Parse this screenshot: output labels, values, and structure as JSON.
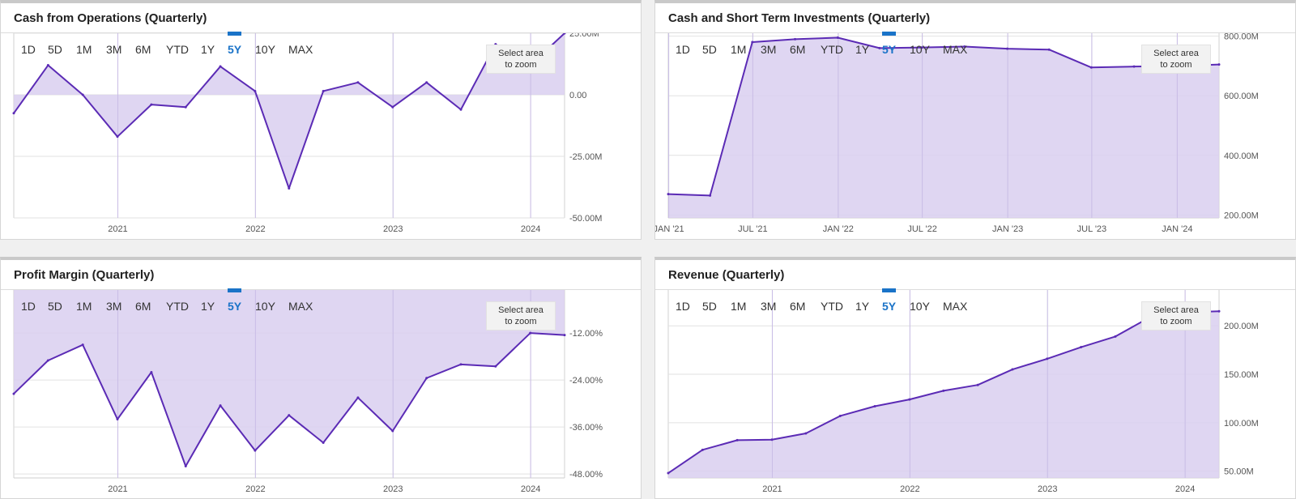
{
  "range_buttons": [
    "1D",
    "5D",
    "1M",
    "3M",
    "6M",
    "YTD",
    "1Y",
    "5Y",
    "10Y",
    "MAX"
  ],
  "active_range": "5Y",
  "zoom_button": {
    "line1": "Select area",
    "line2": "to zoom"
  },
  "colors": {
    "line": "#5b2bb5",
    "fill": "#d9cff0",
    "active": "#1a73c8"
  },
  "chart_data": [
    {
      "type": "area",
      "title": "Cash from Operations (Quarterly)",
      "x": [
        "2020-03-31",
        "2020-06-30",
        "2020-09-30",
        "2020-12-31",
        "2021-03-31",
        "2021-06-30",
        "2021-09-30",
        "2021-12-31",
        "2022-03-31",
        "2022-06-30",
        "2022-09-30",
        "2022-12-31",
        "2023-03-31",
        "2023-06-30",
        "2023-09-30",
        "2023-12-31",
        "2024-03-31"
      ],
      "values": [
        -7.5,
        12,
        0,
        -17,
        -4,
        -5,
        11.5,
        1.5,
        -38,
        1.5,
        5,
        -5,
        5,
        -6,
        20.5,
        12,
        25
      ],
      "ylim": [
        -50,
        25
      ],
      "yticks": [
        25,
        0,
        -25,
        -50
      ],
      "ytick_labels": [
        "25.00M",
        "0.00",
        "-25.00M",
        "-50.00M"
      ],
      "xtick_labels": [
        "2021",
        "2022",
        "2023",
        "2024"
      ],
      "xtick_dates": [
        "2021-01-01",
        "2022-01-01",
        "2023-01-01",
        "2024-01-01"
      ],
      "baseline": 0
    },
    {
      "type": "area",
      "title": "Cash and Short Term Investments (Quarterly)",
      "x": [
        "2020-12-31",
        "2021-03-31",
        "2021-06-30",
        "2021-09-30",
        "2021-12-31",
        "2022-03-31",
        "2022-06-30",
        "2022-09-30",
        "2022-12-31",
        "2023-03-31",
        "2023-06-30",
        "2023-09-30",
        "2023-12-31",
        "2024-03-31"
      ],
      "values": [
        270,
        265,
        780,
        790,
        795,
        760,
        762,
        765,
        758,
        755,
        695,
        698,
        700,
        705
      ],
      "ylim": [
        190,
        810
      ],
      "yticks": [
        800,
        600,
        400,
        200
      ],
      "ytick_labels": [
        "800.00M",
        "600.00M",
        "400.00M",
        "200.00M"
      ],
      "xtick_labels": [
        "JAN '21",
        "JUL '21",
        "JAN '22",
        "JUL '22",
        "JAN '23",
        "JUL '23",
        "JAN '24"
      ],
      "xtick_dates": [
        "2021-01-01",
        "2021-07-01",
        "2022-01-01",
        "2022-07-01",
        "2023-01-01",
        "2023-07-01",
        "2024-01-01"
      ],
      "baseline": "bottom"
    },
    {
      "type": "area",
      "title": "Profit Margin (Quarterly)",
      "x": [
        "2020-03-31",
        "2020-06-30",
        "2020-09-30",
        "2020-12-31",
        "2021-03-31",
        "2021-06-30",
        "2021-09-30",
        "2021-12-31",
        "2022-03-31",
        "2022-06-30",
        "2022-09-30",
        "2022-12-31",
        "2023-03-31",
        "2023-06-30",
        "2023-09-30",
        "2023-12-31",
        "2024-03-31"
      ],
      "values": [
        -27.5,
        -19,
        -15,
        -34,
        -22,
        -46,
        -30.5,
        -42,
        -33,
        -40,
        -28.5,
        -37,
        -23.5,
        -20,
        -20.5,
        -12,
        -12.5
      ],
      "ylim": [
        -49,
        -1
      ],
      "yticks": [
        -12,
        -24,
        -36,
        -48
      ],
      "ytick_labels": [
        "-12.00%",
        "-24.00%",
        "-36.00%",
        "-48.00%"
      ],
      "xtick_labels": [
        "2021",
        "2022",
        "2023",
        "2024"
      ],
      "xtick_dates": [
        "2021-01-01",
        "2022-01-01",
        "2023-01-01",
        "2024-01-01"
      ],
      "baseline": "top"
    },
    {
      "type": "area",
      "title": "Revenue (Quarterly)",
      "x": [
        "2020-03-31",
        "2020-06-30",
        "2020-09-30",
        "2020-12-31",
        "2021-03-31",
        "2021-06-30",
        "2021-09-30",
        "2021-12-31",
        "2022-03-31",
        "2022-06-30",
        "2022-09-30",
        "2022-12-31",
        "2023-03-31",
        "2023-06-30",
        "2023-09-30",
        "2023-12-31",
        "2024-03-31"
      ],
      "values": [
        48,
        72,
        82,
        82.5,
        89,
        107,
        117,
        124,
        133,
        139,
        155,
        166,
        178,
        189,
        209,
        214,
        215
      ],
      "ylim": [
        43,
        237
      ],
      "yticks": [
        200,
        150,
        100,
        50
      ],
      "ytick_labels": [
        "200.00M",
        "150.00M",
        "100.00M",
        "50.00M"
      ],
      "xtick_labels": [
        "2021",
        "2022",
        "2023",
        "2024"
      ],
      "xtick_dates": [
        "2021-01-01",
        "2022-01-01",
        "2023-01-01",
        "2024-01-01"
      ],
      "baseline": "bottom"
    }
  ]
}
